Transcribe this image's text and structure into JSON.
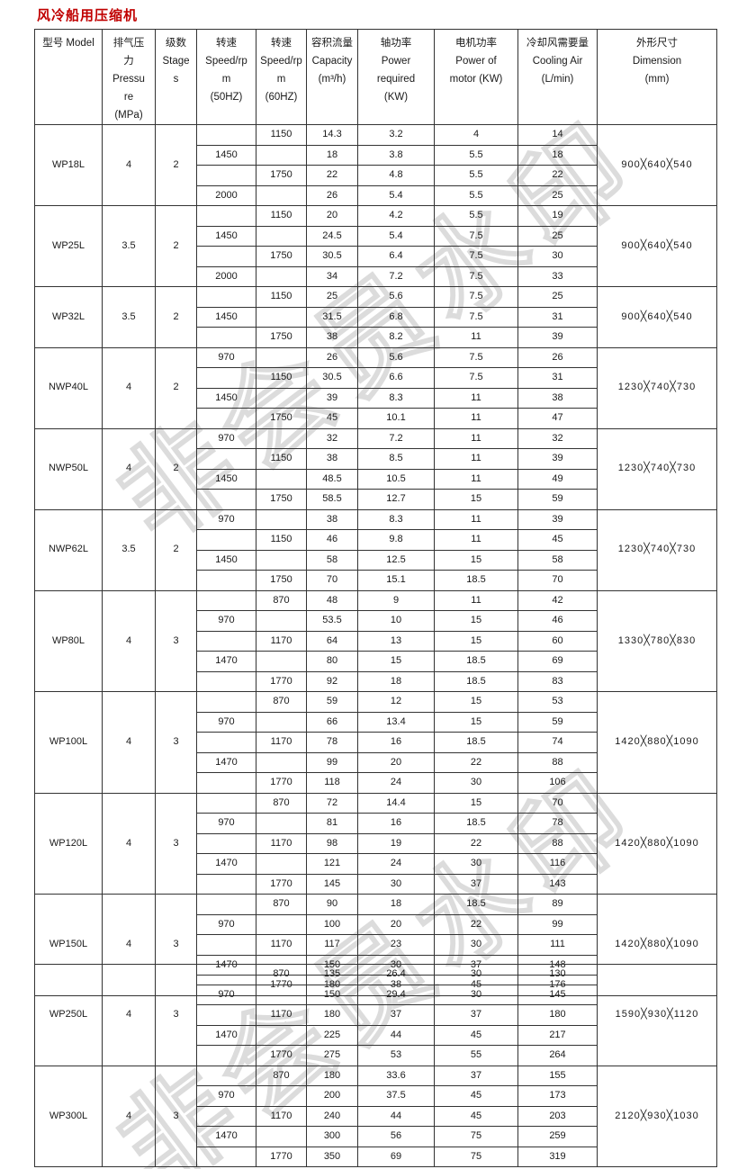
{
  "title": "风冷船用压缩机",
  "title_color": "#c00000",
  "watermark": {
    "text": "非会员水印",
    "outline_color": "#dcdcdc"
  },
  "headers": [
    [
      "型号 Model"
    ],
    [
      "排气压",
      "力",
      "Pressu",
      "re",
      "(MPa)"
    ],
    [
      "级数",
      "Stage",
      "s"
    ],
    [
      "转速",
      "Speed/rp",
      "m",
      "(50HZ)"
    ],
    [
      "转速",
      "Speed/rp",
      "m",
      "(60HZ)"
    ],
    [
      "容积流量",
      "Capacity",
      "(m³/h)"
    ],
    [
      "轴功率",
      "Power",
      "required",
      "(KW)"
    ],
    [
      "电机功率",
      "Power of",
      "motor (KW)"
    ],
    [
      "冷却风需要量",
      "Cooling Air",
      "(L/min)"
    ],
    [
      "外形尺寸",
      "Dimension",
      "(mm)"
    ]
  ],
  "tables": [
    {
      "groups": [
        {
          "model": "WP18L",
          "pressure": "4",
          "stages": "2",
          "dimension": "900╳640╳540",
          "rows": [
            [
              "",
              "1150",
              "14.3",
              "3.2",
              "4",
              "14"
            ],
            [
              "1450",
              "",
              "18",
              "3.8",
              "5.5",
              "18"
            ],
            [
              "",
              "1750",
              "22",
              "4.8",
              "5.5",
              "22"
            ],
            [
              "2000",
              "",
              "26",
              "5.4",
              "5.5",
              "25"
            ]
          ]
        },
        {
          "model": "WP25L",
          "pressure": "3.5",
          "stages": "2",
          "dimension": "900╳640╳540",
          "rows": [
            [
              "",
              "1150",
              "20",
              "4.2",
              "5.5",
              "19"
            ],
            [
              "1450",
              "",
              "24.5",
              "5.4",
              "7.5",
              "25"
            ],
            [
              "",
              "1750",
              "30.5",
              "6.4",
              "7.5",
              "30"
            ],
            [
              "2000",
              "",
              "34",
              "7.2",
              "7.5",
              "33"
            ]
          ]
        },
        {
          "model": "WP32L",
          "pressure": "3.5",
          "stages": "2",
          "dimension": "900╳640╳540",
          "rows": [
            [
              "",
              "1150",
              "25",
              "5.6",
              "7.5",
              "25"
            ],
            [
              "1450",
              "",
              "31.5",
              "6.8",
              "7.5",
              "31"
            ],
            [
              "",
              "1750",
              "38",
              "8.2",
              "11",
              "39"
            ]
          ]
        },
        {
          "model": "NWP40L",
          "pressure": "4",
          "stages": "2",
          "dimension": "1230╳740╳730",
          "rows": [
            [
              "970",
              "",
              "26",
              "5.6",
              "7.5",
              "26"
            ],
            [
              "",
              "1150",
              "30.5",
              "6.6",
              "7.5",
              "31"
            ],
            [
              "1450",
              "",
              "39",
              "8.3",
              "11",
              "38"
            ],
            [
              "",
              "1750",
              "45",
              "10.1",
              "11",
              "47"
            ]
          ]
        },
        {
          "model": "NWP50L",
          "pressure": "4",
          "stages": "2",
          "dimension": "1230╳740╳730",
          "rows": [
            [
              "970",
              "",
              "32",
              "7.2",
              "11",
              "32"
            ],
            [
              "",
              "1150",
              "38",
              "8.5",
              "11",
              "39"
            ],
            [
              "1450",
              "",
              "48.5",
              "10.5",
              "11",
              "49"
            ],
            [
              "",
              "1750",
              "58.5",
              "12.7",
              "15",
              "59"
            ]
          ]
        },
        {
          "model": "NWP62L",
          "pressure": "3.5",
          "stages": "2",
          "dimension": "1230╳740╳730",
          "rows": [
            [
              "970",
              "",
              "38",
              "8.3",
              "11",
              "39"
            ],
            [
              "",
              "1150",
              "46",
              "9.8",
              "11",
              "45"
            ],
            [
              "1450",
              "",
              "58",
              "12.5",
              "15",
              "58"
            ],
            [
              "",
              "1750",
              "70",
              "15.1",
              "18.5",
              "70"
            ]
          ]
        },
        {
          "model": "WP80L",
          "pressure": "4",
          "stages": "3",
          "dimension": "1330╳780╳830",
          "rows": [
            [
              "",
              "870",
              "48",
              "9",
              "11",
              "42"
            ],
            [
              "970",
              "",
              "53.5",
              "10",
              "15",
              "46"
            ],
            [
              "",
              "1170",
              "64",
              "13",
              "15",
              "60"
            ],
            [
              "1470",
              "",
              "80",
              "15",
              "18.5",
              "69"
            ],
            [
              "",
              "1770",
              "92",
              "18",
              "18.5",
              "83"
            ]
          ]
        },
        {
          "model": "WP100L",
          "pressure": "4",
          "stages": "3",
          "dimension": "1420╳880╳1090",
          "rows": [
            [
              "",
              "870",
              "59",
              "12",
              "15",
              "53"
            ],
            [
              "970",
              "",
              "66",
              "13.4",
              "15",
              "59"
            ],
            [
              "",
              "1170",
              "78",
              "16",
              "18.5",
              "74"
            ],
            [
              "1470",
              "",
              "99",
              "20",
              "22",
              "88"
            ],
            [
              "",
              "1770",
              "118",
              "24",
              "30",
              "106"
            ]
          ]
        },
        {
          "model": "WP120L",
          "pressure": "4",
          "stages": "3",
          "dimension": "1420╳880╳1090",
          "rows": [
            [
              "",
              "870",
              "72",
              "14.4",
              "15",
              "70"
            ],
            [
              "970",
              "",
              "81",
              "16",
              "18.5",
              "78"
            ],
            [
              "",
              "1170",
              "98",
              "19",
              "22",
              "88"
            ],
            [
              "1470",
              "",
              "121",
              "24",
              "30",
              "116"
            ],
            [
              "",
              "1770",
              "145",
              "30",
              "37",
              "143"
            ]
          ]
        },
        {
          "model": "WP150L",
          "pressure": "4",
          "stages": "3",
          "dimension": "1420╳880╳1090",
          "rows": [
            [
              "",
              "870",
              "90",
              "18",
              "18.5",
              "89"
            ],
            [
              "970",
              "",
              "100",
              "20",
              "22",
              "99"
            ],
            [
              "",
              "1170",
              "117",
              "23",
              "30",
              "111"
            ],
            [
              "1470",
              "",
              "150",
              "30",
              "37",
              "148"
            ],
            [
              "",
              "1770",
              "180",
              "38",
              "45",
              "176"
            ]
          ]
        }
      ]
    },
    {
      "groups": [
        {
          "model": "WP250L",
          "pressure": "4",
          "stages": "3",
          "dimension": "1590╳930╳1120",
          "rows": [
            [
              "",
              "870",
              "135",
              "26.4",
              "30",
              "130"
            ],
            [
              "970",
              "",
              "150",
              "29.4",
              "30",
              "145"
            ],
            [
              "",
              "1170",
              "180",
              "37",
              "37",
              "180"
            ],
            [
              "1470",
              "",
              "225",
              "44",
              "45",
              "217"
            ],
            [
              "",
              "1770",
              "275",
              "53",
              "55",
              "264"
            ]
          ]
        },
        {
          "model": "WP300L",
          "pressure": "4",
          "stages": "3",
          "dimension": "2120╳930╳1030",
          "rows": [
            [
              "",
              "870",
              "180",
              "33.6",
              "37",
              "155"
            ],
            [
              "970",
              "",
              "200",
              "37.5",
              "45",
              "173"
            ],
            [
              "",
              "1170",
              "240",
              "44",
              "45",
              "203"
            ],
            [
              "1470",
              "",
              "300",
              "56",
              "75",
              "259"
            ],
            [
              "",
              "1770",
              "350",
              "69",
              "75",
              "319"
            ]
          ]
        }
      ]
    }
  ]
}
